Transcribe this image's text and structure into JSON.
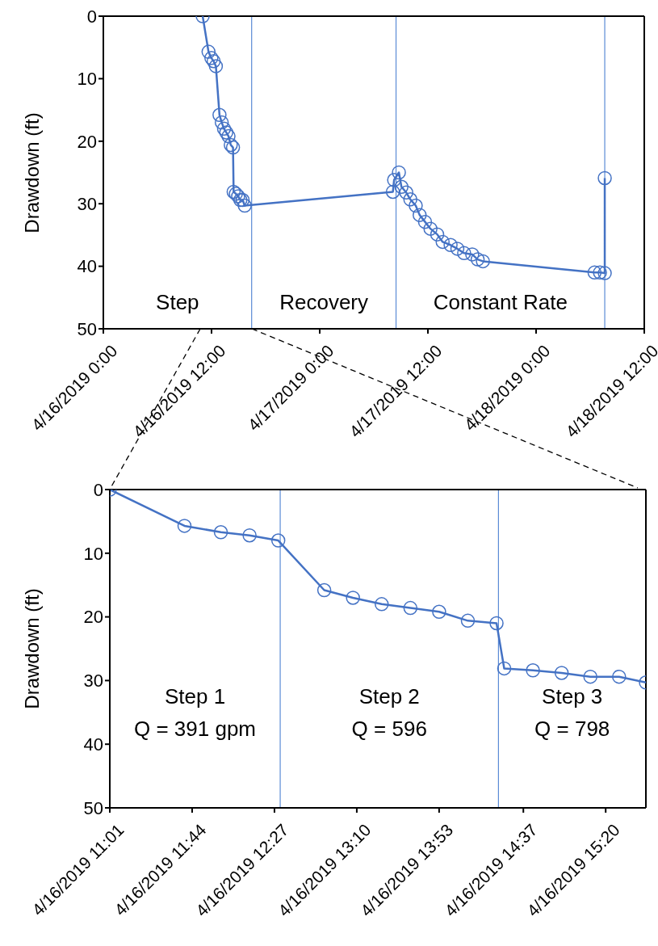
{
  "chart_data": [
    {
      "type": "line",
      "ylabel": "Drawdown (ft)",
      "color": "#4472c4",
      "marker": "circle",
      "x": [
        "2019-04-16T11:01",
        "2019-04-16T11:40",
        "2019-04-16T11:59",
        "2019-04-16T12:14",
        "2019-04-16T12:29",
        "2019-04-16T12:53",
        "2019-04-16T13:08",
        "2019-04-16T13:23",
        "2019-04-16T13:38",
        "2019-04-16T13:53",
        "2019-04-16T14:08",
        "2019-04-16T14:23",
        "2019-04-16T14:27",
        "2019-04-16T14:42",
        "2019-04-16T14:57",
        "2019-04-16T15:12",
        "2019-04-16T15:27",
        "2019-04-16T15:41",
        "2019-04-17T08:07",
        "2019-04-17T08:15",
        "2019-04-17T08:47",
        "2019-04-17T09:04",
        "2019-04-17T09:36",
        "2019-04-17T10:03",
        "2019-04-17T10:39",
        "2019-04-17T11:05",
        "2019-04-17T11:41",
        "2019-04-17T12:17",
        "2019-04-17T13:02",
        "2019-04-17T13:38",
        "2019-04-17T14:31",
        "2019-04-17T15:16",
        "2019-04-17T16:01",
        "2019-04-17T16:55",
        "2019-04-17T17:31",
        "2019-04-17T18:06",
        "2019-04-18T06:29",
        "2019-04-18T07:05",
        "2019-04-18T07:37",
        "2019-04-18T07:37"
      ],
      "values": [
        0,
        5.7,
        6.7,
        7.2,
        8.0,
        15.8,
        17.0,
        18.0,
        18.6,
        19.2,
        20.6,
        21.0,
        28.1,
        28.4,
        28.8,
        29.4,
        29.4,
        30.3,
        28.1,
        26.2,
        25.0,
        27.3,
        28.2,
        29.3,
        30.3,
        31.8,
        32.9,
        34.0,
        34.9,
        36.1,
        36.6,
        37.2,
        37.9,
        38.1,
        38.9,
        39.2,
        41.0,
        41.0,
        41.1,
        25.9
      ],
      "xlim": [
        "2019-04-16T00:00",
        "2019-04-18T12:00"
      ],
      "xticks": [
        {
          "value": "2019-04-16T00:00",
          "label": "4/16/2019 0:00"
        },
        {
          "value": "2019-04-16T12:00",
          "label": "4/16/2019 12:00"
        },
        {
          "value": "2019-04-17T00:00",
          "label": "4/17/2019 0:00"
        },
        {
          "value": "2019-04-17T12:00",
          "label": "4/17/2019 12:00"
        },
        {
          "value": "2019-04-18T00:00",
          "label": "4/18/2019 0:00"
        },
        {
          "value": "2019-04-18T12:00",
          "label": "4/18/2019 12:00"
        }
      ],
      "ylim": [
        50,
        0
      ],
      "yticks": [
        0,
        10,
        20,
        30,
        40,
        50
      ],
      "ref_lines": [
        {
          "axis": "x",
          "value": "2019-04-16T16:27",
          "color": "#5b8bd6"
        },
        {
          "axis": "x",
          "value": "2019-04-17T08:28",
          "color": "#5b8bd6"
        },
        {
          "axis": "x",
          "value": "2019-04-18T07:37",
          "color": "#5b8bd6"
        }
      ],
      "annotations": [
        "Step",
        "Recovery",
        "Constant Rate"
      ]
    },
    {
      "type": "line",
      "ylabel": "Drawdown (ft)",
      "color": "#4472c4",
      "marker": "circle",
      "x": [
        "2019-04-16T11:01",
        "2019-04-16T11:40",
        "2019-04-16T11:59",
        "2019-04-16T12:14",
        "2019-04-16T12:29",
        "2019-04-16T12:53",
        "2019-04-16T13:08",
        "2019-04-16T13:23",
        "2019-04-16T13:38",
        "2019-04-16T13:53",
        "2019-04-16T14:08",
        "2019-04-16T14:23",
        "2019-04-16T14:27",
        "2019-04-16T14:42",
        "2019-04-16T14:57",
        "2019-04-16T15:12",
        "2019-04-16T15:27",
        "2019-04-16T15:41"
      ],
      "values": [
        0,
        5.7,
        6.7,
        7.2,
        8.0,
        15.8,
        17.0,
        18.0,
        18.6,
        19.2,
        20.6,
        21.0,
        28.1,
        28.4,
        28.8,
        29.4,
        29.4,
        30.3
      ],
      "xlim": [
        "2019-04-16T11:01",
        "2019-04-16T15:41"
      ],
      "xticks": [
        {
          "value": "2019-04-16T11:01",
          "label": "4/16/2019 11:01"
        },
        {
          "value": "2019-04-16T11:44",
          "label": "4/16/2019 11:44"
        },
        {
          "value": "2019-04-16T12:27",
          "label": "4/16/2019 12:27"
        },
        {
          "value": "2019-04-16T13:10",
          "label": "4/16/2019 13:10"
        },
        {
          "value": "2019-04-16T13:53",
          "label": "4/16/2019 13:53"
        },
        {
          "value": "2019-04-16T14:37",
          "label": "4/16/2019 14:37"
        },
        {
          "value": "2019-04-16T15:20",
          "label": "4/16/2019 15:20"
        }
      ],
      "ylim": [
        50,
        0
      ],
      "yticks": [
        0,
        10,
        20,
        30,
        40,
        50
      ],
      "ref_lines": [
        {
          "axis": "x",
          "value": "2019-04-16T12:30",
          "color": "#5b8bd6"
        },
        {
          "axis": "x",
          "value": "2019-04-16T14:24",
          "color": "#5b8bd6"
        }
      ],
      "annotations": [
        "Step 1\nQ = 391 gpm",
        "Step 2\nQ = 596",
        "Step 3\nQ = 798"
      ]
    }
  ]
}
